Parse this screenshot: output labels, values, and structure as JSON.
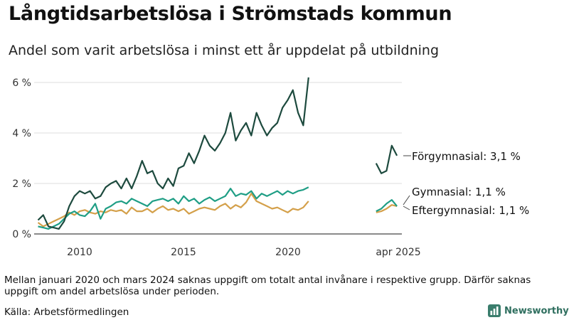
{
  "title": "Långtidsarbetslösa i Strömstads kommun",
  "subtitle": "Andel som varit arbetslösa i minst ett år uppdelat på utbildning",
  "note": "Mellan januari 2020 och mars 2024 saknas uppgift om totalt antal invånare i respektive grupp. Därför saknas uppgift om andel arbetslösa under perioden.",
  "source": "Källa: Arbetsförmedlingen",
  "brand": {
    "name": "Newsworthy"
  },
  "colors": {
    "forgymnasial": "#1d4a3e",
    "gymnasial": "#1f9e85",
    "eftergymnasial": "#d4a04a",
    "grid": "#dddddd",
    "axis": "#444444"
  },
  "chart_data": {
    "type": "line",
    "title": "Långtidsarbetslösa i Strömstads kommun",
    "ylabel": "",
    "ylim": [
      0,
      6.2
    ],
    "yticks": [
      0,
      2,
      4,
      6
    ],
    "yticklabels": [
      "0 %",
      "2 %",
      "4 %",
      "6 %"
    ],
    "xticks": [
      2010,
      2015,
      2020,
      2025.25
    ],
    "xticklabels": [
      "2010",
      "2015",
      "2020",
      "apr 2025"
    ],
    "series": [
      {
        "name": "Förgymnasial",
        "label": "Förgymnasial: 3,1 %",
        "color": "#1d4a3e",
        "segments": [
          {
            "x": [
              2008.0,
              2008.25,
              2008.5,
              2008.75,
              2009.0,
              2009.25,
              2009.5,
              2009.75,
              2010.0,
              2010.25,
              2010.5,
              2010.75,
              2011.0,
              2011.25,
              2011.5,
              2011.75,
              2012.0,
              2012.25,
              2012.5,
              2012.75,
              2013.0,
              2013.25,
              2013.5,
              2013.75,
              2014.0,
              2014.25,
              2014.5,
              2014.75,
              2015.0,
              2015.25,
              2015.5,
              2015.75,
              2016.0,
              2016.25,
              2016.5,
              2016.75,
              2017.0,
              2017.25,
              2017.5,
              2017.75,
              2018.0,
              2018.25,
              2018.5,
              2018.75,
              2019.0,
              2019.25,
              2019.5,
              2019.75,
              2020.0,
              2020.25,
              2020.5,
              2020.75,
              2021.0
            ],
            "y": [
              0.55,
              0.75,
              0.3,
              0.25,
              0.2,
              0.5,
              1.1,
              1.5,
              1.7,
              1.6,
              1.7,
              1.4,
              1.5,
              1.85,
              2.0,
              2.1,
              1.8,
              2.2,
              1.8,
              2.3,
              2.9,
              2.4,
              2.5,
              2.0,
              1.8,
              2.2,
              1.9,
              2.6,
              2.7,
              3.2,
              2.8,
              3.3,
              3.9,
              3.5,
              3.3,
              3.6,
              4.0,
              4.8,
              3.7,
              4.1,
              4.4,
              3.9,
              4.8,
              4.3,
              3.9,
              4.2,
              4.4,
              5.0,
              5.3,
              5.7,
              4.8,
              4.3,
              6.2
            ]
          },
          {
            "x": [
              2024.25,
              2024.5,
              2024.75,
              2025.0,
              2025.25
            ],
            "y": [
              2.8,
              2.4,
              2.5,
              3.5,
              3.1
            ]
          }
        ]
      },
      {
        "name": "Gymnasial",
        "label": "Gymnasial: 1,1 %",
        "color": "#1f9e85",
        "segments": [
          {
            "x": [
              2008.0,
              2008.25,
              2008.5,
              2008.75,
              2009.0,
              2009.25,
              2009.5,
              2009.75,
              2010.0,
              2010.25,
              2010.5,
              2010.75,
              2011.0,
              2011.25,
              2011.5,
              2011.75,
              2012.0,
              2012.25,
              2012.5,
              2012.75,
              2013.0,
              2013.25,
              2013.5,
              2013.75,
              2014.0,
              2014.25,
              2014.5,
              2014.75,
              2015.0,
              2015.25,
              2015.5,
              2015.75,
              2016.0,
              2016.25,
              2016.5,
              2016.75,
              2017.0,
              2017.25,
              2017.5,
              2017.75,
              2018.0,
              2018.25,
              2018.5,
              2018.75,
              2019.0,
              2019.25,
              2019.5,
              2019.75,
              2020.0,
              2020.25,
              2020.5,
              2020.75,
              2021.0
            ],
            "y": [
              0.3,
              0.25,
              0.2,
              0.3,
              0.4,
              0.6,
              0.8,
              0.9,
              0.75,
              0.7,
              0.9,
              1.2,
              0.6,
              1.0,
              1.1,
              1.25,
              1.3,
              1.2,
              1.4,
              1.3,
              1.2,
              1.1,
              1.3,
              1.35,
              1.4,
              1.3,
              1.4,
              1.2,
              1.5,
              1.3,
              1.4,
              1.2,
              1.35,
              1.45,
              1.3,
              1.4,
              1.5,
              1.8,
              1.5,
              1.6,
              1.55,
              1.7,
              1.4,
              1.6,
              1.5,
              1.6,
              1.7,
              1.55,
              1.7,
              1.6,
              1.7,
              1.75,
              1.85
            ]
          },
          {
            "x": [
              2024.25,
              2024.5,
              2024.75,
              2025.0,
              2025.25
            ],
            "y": [
              0.9,
              1.0,
              1.2,
              1.35,
              1.1
            ]
          }
        ]
      },
      {
        "name": "Eftergymnasial",
        "label": "Eftergymnasial: 1,1 %",
        "color": "#d4a04a",
        "segments": [
          {
            "x": [
              2008.0,
              2008.25,
              2008.5,
              2008.75,
              2009.0,
              2009.25,
              2009.5,
              2009.75,
              2010.0,
              2010.25,
              2010.5,
              2010.75,
              2011.0,
              2011.25,
              2011.5,
              2011.75,
              2012.0,
              2012.25,
              2012.5,
              2012.75,
              2013.0,
              2013.25,
              2013.5,
              2013.75,
              2014.0,
              2014.25,
              2014.5,
              2014.75,
              2015.0,
              2015.25,
              2015.5,
              2015.75,
              2016.0,
              2016.25,
              2016.5,
              2016.75,
              2017.0,
              2017.25,
              2017.5,
              2017.75,
              2018.0,
              2018.25,
              2018.5,
              2018.75,
              2019.0,
              2019.25,
              2019.5,
              2019.75,
              2020.0,
              2020.25,
              2020.5,
              2020.75,
              2021.0
            ],
            "y": [
              0.45,
              0.3,
              0.4,
              0.5,
              0.6,
              0.7,
              0.85,
              0.75,
              0.9,
              0.95,
              0.85,
              0.8,
              0.9,
              0.85,
              0.95,
              0.9,
              0.95,
              0.8,
              1.05,
              0.9,
              0.9,
              1.0,
              0.85,
              1.0,
              1.1,
              0.95,
              1.0,
              0.9,
              1.0,
              0.8,
              0.9,
              1.0,
              1.05,
              1.0,
              0.95,
              1.1,
              1.2,
              1.0,
              1.15,
              1.05,
              1.25,
              1.6,
              1.3,
              1.2,
              1.1,
              1.0,
              1.05,
              0.95,
              0.85,
              1.0,
              0.95,
              1.05,
              1.3
            ]
          },
          {
            "x": [
              2024.25,
              2024.5,
              2024.75,
              2025.0,
              2025.25
            ],
            "y": [
              0.85,
              0.9,
              1.0,
              1.15,
              1.1
            ]
          }
        ]
      }
    ]
  }
}
